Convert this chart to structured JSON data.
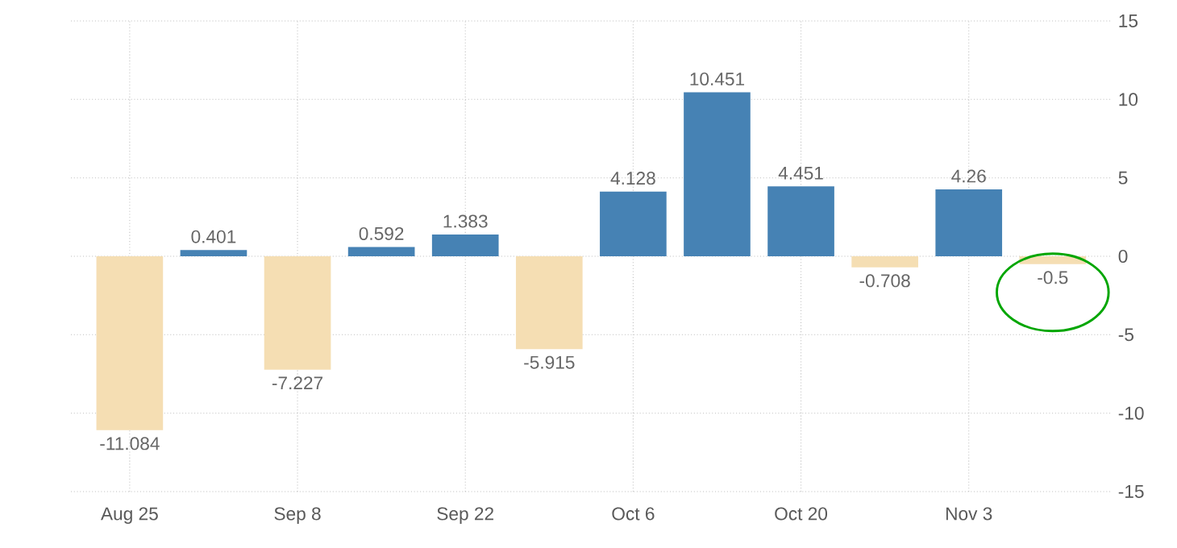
{
  "chart_data": {
    "type": "bar",
    "categories": [
      "Aug 25",
      null,
      "Sep 8",
      null,
      "Sep 22",
      null,
      "Oct 6",
      null,
      "Oct 20",
      null,
      "Nov 3",
      null
    ],
    "values": [
      -11.084,
      0.401,
      -7.227,
      0.592,
      1.383,
      -5.915,
      4.128,
      10.451,
      4.451,
      -0.708,
      4.26,
      -0.5
    ],
    "colors": [
      "#f5deb3",
      "#4682b4",
      "#f5deb3",
      "#4682b4",
      "#4682b4",
      "#f5deb3",
      "#4682b4",
      "#4682b4",
      "#4682b4",
      "#f5deb3",
      "#4682b4",
      "#f5deb3"
    ],
    "ylim": [
      -15,
      15
    ],
    "yticks": [
      -15,
      -10,
      -5,
      0,
      5,
      10,
      15
    ],
    "grid": true,
    "data_labels": true
  }
}
